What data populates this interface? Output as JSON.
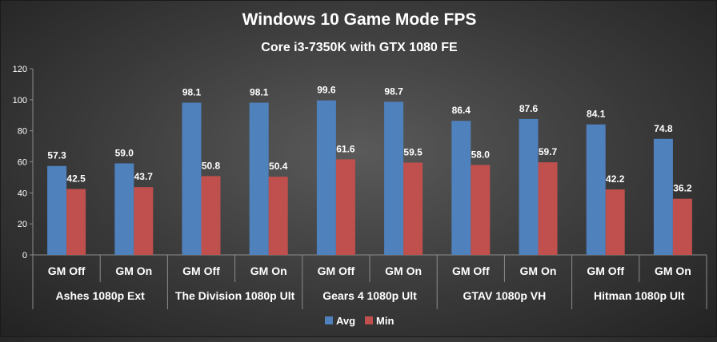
{
  "chart_data": {
    "type": "bar",
    "title": "Windows 10 Game Mode FPS",
    "subtitle": "Core i3-7350K with GTX 1080 FE",
    "groups": [
      "Ashes 1080p Ext",
      "The Division 1080p Ult",
      "Gears 4 1080p Ult",
      "GTAV 1080p VH",
      "Hitman 1080p Ult"
    ],
    "categories": [
      "GM Off",
      "GM On",
      "GM Off",
      "GM On",
      "GM Off",
      "GM On",
      "GM Off",
      "GM On",
      "GM Off",
      "GM On"
    ],
    "series": [
      {
        "name": "Avg",
        "color": "#4f81bd",
        "values": [
          57.3,
          59.0,
          98.1,
          98.1,
          99.6,
          98.7,
          86.4,
          87.6,
          84.1,
          74.8
        ]
      },
      {
        "name": "Min",
        "color": "#c0504d",
        "values": [
          42.5,
          43.7,
          50.8,
          50.4,
          61.6,
          59.5,
          58.0,
          59.7,
          42.2,
          36.2
        ]
      }
    ],
    "ylim": [
      0,
      120
    ],
    "yticks": [
      0,
      20,
      40,
      60,
      80,
      100,
      120
    ],
    "legend": "bottom-center",
    "grid": false
  }
}
